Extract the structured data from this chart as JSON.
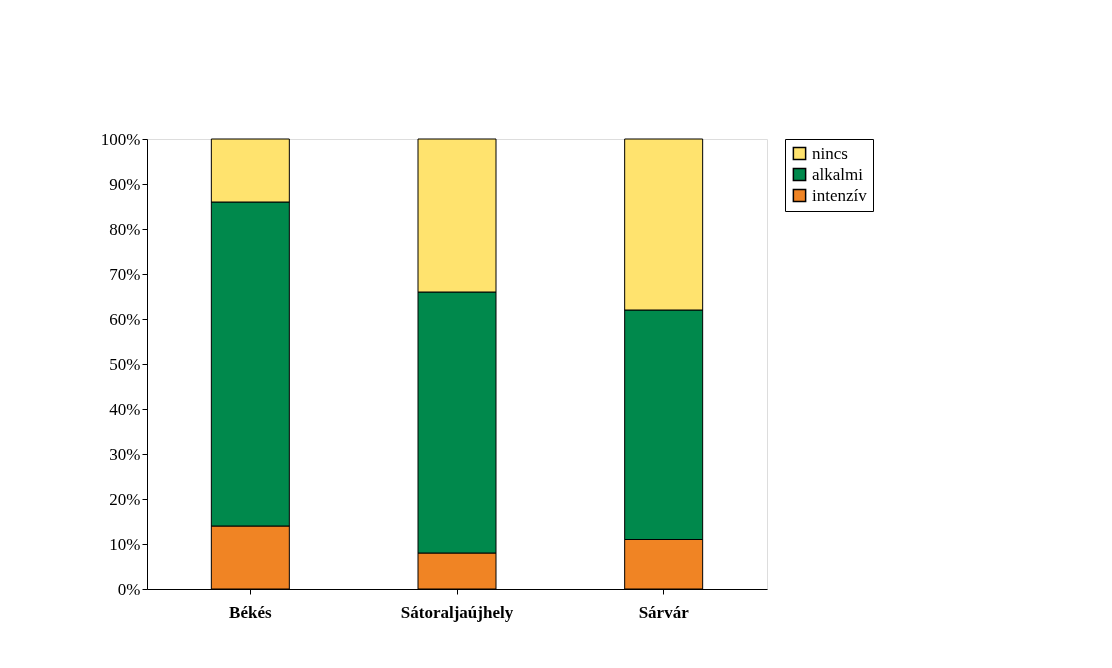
{
  "chart_data": {
    "type": "bar",
    "stacked": true,
    "categories": [
      "Békés",
      "Sátoraljaújhely",
      "Sárvár"
    ],
    "series": [
      {
        "name": "intenzív",
        "color": "#f08424",
        "values": [
          14,
          8,
          11
        ]
      },
      {
        "name": "alkalmi",
        "color": "#00894c",
        "values": [
          72,
          58,
          51
        ]
      },
      {
        "name": "nincs",
        "color": "#ffe36e",
        "values": [
          14,
          34,
          38
        ]
      }
    ],
    "ylim": [
      0,
      100
    ],
    "yticks": [
      {
        "value": 0,
        "label": "0%"
      },
      {
        "value": 10,
        "label": "10%"
      },
      {
        "value": 20,
        "label": "20%"
      },
      {
        "value": 30,
        "label": "30%"
      },
      {
        "value": 40,
        "label": "40%"
      },
      {
        "value": 50,
        "label": "50%"
      },
      {
        "value": 60,
        "label": "60%"
      },
      {
        "value": 70,
        "label": "70%"
      },
      {
        "value": 80,
        "label": "80%"
      },
      {
        "value": 90,
        "label": "90%"
      },
      {
        "value": 100,
        "label": "100%"
      }
    ],
    "grid": false,
    "legend": "right"
  }
}
